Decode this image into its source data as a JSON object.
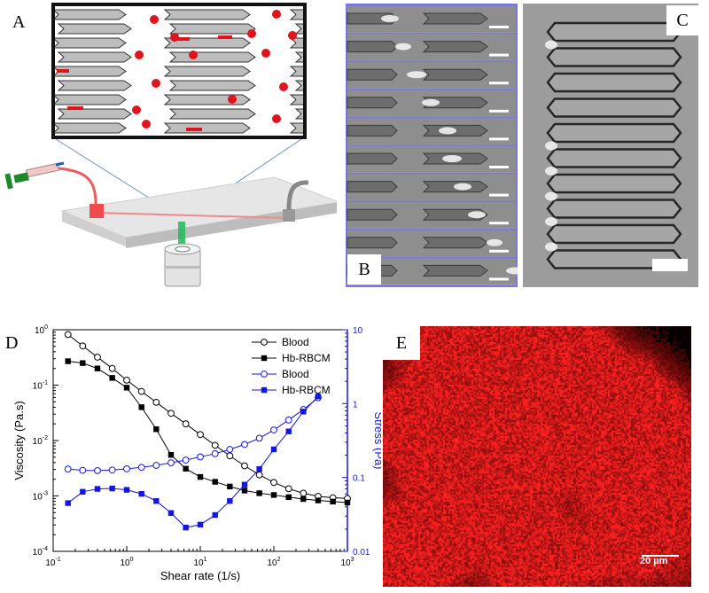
{
  "panels": {
    "a": "A",
    "b": "B",
    "c": "C",
    "d": "D",
    "e": "E"
  },
  "scale_bar_e": "20 µm",
  "colors": {
    "black_series": "#000000",
    "blue_series": "#1515e0",
    "rbc_red": "#e0141c",
    "frame_blue": "#7777dd",
    "fluorescence_red": "#c01818"
  },
  "chart_data": {
    "type": "line",
    "xlabel": "Shear rate (1/s)",
    "ylabel": "Viscosity (Pa.s)",
    "y2label": "Stress (Pa)",
    "xscale": "log",
    "yscale": "log",
    "y2scale": "log",
    "xlim": [
      0.1,
      1000
    ],
    "ylim": [
      0.0001,
      1
    ],
    "y2lim": [
      0.01,
      10
    ],
    "x_ticks": [
      "10^-1",
      "10^0",
      "10^1",
      "10^2",
      "10^3"
    ],
    "y_ticks": [
      "10^-4",
      "10^-3",
      "10^-2",
      "10^-1",
      "10^0"
    ],
    "y2_ticks": [
      "0.01",
      "0.1",
      "1",
      "10"
    ],
    "legend_position": "top-right",
    "series": [
      {
        "name": "Blood",
        "axis": "left",
        "marker": "open-circle",
        "color": "#000000",
        "x": [
          0.159,
          0.252,
          0.4,
          0.635,
          1.0,
          1.59,
          2.52,
          4.0,
          6.35,
          10,
          15.9,
          25.2,
          40,
          63.5,
          100,
          159,
          252,
          400,
          635,
          1000
        ],
        "y": [
          0.82,
          0.51,
          0.32,
          0.2,
          0.123,
          0.077,
          0.049,
          0.031,
          0.02,
          0.0128,
          0.0082,
          0.0053,
          0.0035,
          0.0024,
          0.00175,
          0.00135,
          0.00112,
          0.00098,
          0.00093,
          0.0009
        ]
      },
      {
        "name": "Hb-RBCM",
        "axis": "left",
        "marker": "filled-square",
        "color": "#000000",
        "x": [
          0.159,
          0.252,
          0.4,
          0.635,
          1.0,
          1.59,
          2.52,
          4.0,
          6.35,
          10,
          15.9,
          25.2,
          40,
          63.5,
          100,
          159,
          252,
          400,
          635,
          1000
        ],
        "y": [
          0.27,
          0.25,
          0.2,
          0.135,
          0.09,
          0.04,
          0.016,
          0.0055,
          0.0031,
          0.0022,
          0.0018,
          0.00148,
          0.00125,
          0.00112,
          0.00104,
          0.00095,
          0.00088,
          0.00083,
          0.00079,
          0.00076
        ]
      },
      {
        "name": "Blood",
        "axis": "right",
        "marker": "open-circle",
        "color": "#1515e0",
        "x": [
          0.159,
          0.252,
          0.4,
          0.635,
          1.0,
          1.59,
          2.52,
          4.0,
          6.35,
          10,
          15.9,
          25.2,
          40,
          63.5,
          100,
          159,
          252,
          400
        ],
        "y": [
          0.13,
          0.125,
          0.124,
          0.126,
          0.131,
          0.137,
          0.146,
          0.158,
          0.172,
          0.19,
          0.21,
          0.24,
          0.28,
          0.34,
          0.44,
          0.6,
          0.83,
          1.2
        ]
      },
      {
        "name": "Hb-RBCM",
        "axis": "right",
        "marker": "filled-square",
        "color": "#1515e0",
        "x": [
          0.159,
          0.252,
          0.4,
          0.635,
          1.0,
          1.59,
          2.52,
          4.0,
          6.35,
          10,
          15.9,
          25.2,
          40,
          63.5,
          100,
          159,
          252,
          400
        ],
        "y": [
          0.045,
          0.064,
          0.07,
          0.071,
          0.068,
          0.06,
          0.048,
          0.033,
          0.021,
          0.023,
          0.031,
          0.048,
          0.08,
          0.13,
          0.24,
          0.42,
          0.78,
          1.25
        ]
      }
    ]
  }
}
